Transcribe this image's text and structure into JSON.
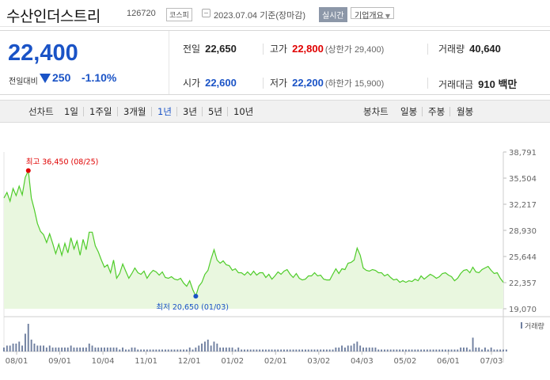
{
  "header": {
    "stock_name": "수산인더스트리",
    "stock_code": "126720",
    "market": "코스피",
    "date_text": "2023.07.04 기준(장마감)",
    "realtime_label": "실시간",
    "company_info_label": "기업개요"
  },
  "summary": {
    "price": "22,400",
    "change_label": "전일대비",
    "change_value": "250",
    "change_pct": "-1.10%",
    "prev_label": "전일",
    "prev_value": "22,650",
    "high_label": "고가",
    "high_value": "22,800",
    "upper_limit": "(상한가 29,400)",
    "volume_label": "거래량",
    "volume_value": "40,640",
    "open_label": "시가",
    "open_value": "22,600",
    "low_label": "저가",
    "low_value": "22,200",
    "lower_limit": "(하한가 15,900)",
    "amount_label": "거래대금",
    "amount_value": "910 백만"
  },
  "periods": {
    "line_label": "선차트",
    "line_options": [
      "1일",
      "1주일",
      "3개월",
      "1년",
      "3년",
      "5년",
      "10년"
    ],
    "active": "1년",
    "candle_label": "봉차트",
    "candle_options": [
      "일봉",
      "주봉",
      "월봉"
    ]
  },
  "chart_data": {
    "type": "area",
    "series": [
      {
        "values": [
          33000,
          33700,
          32600,
          34200,
          33300,
          34500,
          33400,
          35600,
          36450,
          33000,
          31500,
          29800,
          28800,
          28400,
          27400,
          28500,
          27300,
          26000,
          27200,
          25800,
          27300,
          26100,
          28000,
          26600,
          27600,
          25800,
          27800,
          26500,
          28700,
          28700,
          27000,
          26200,
          25200,
          24300,
          24600,
          23600,
          25200,
          22900,
          23500,
          24700,
          23800,
          22900,
          23500,
          24200,
          23600,
          23400,
          23800,
          22900,
          23500,
          23900,
          23700,
          23300,
          23700,
          23000,
          22900,
          23100,
          22800,
          22700,
          22900,
          22300,
          21900,
          22600,
          21500,
          20650,
          21900,
          22400,
          23400,
          23900,
          25300,
          26500,
          25200,
          24800,
          25100,
          24600,
          24500,
          23900,
          24100,
          23600,
          23600,
          23300,
          23700,
          23300,
          23800,
          23300,
          23600,
          23600,
          23000,
          23400,
          22800,
          23200,
          23700,
          23400,
          23800,
          24000,
          23400,
          23000,
          23500,
          22900,
          22700,
          22800,
          23200,
          23200,
          23600,
          23200,
          23300,
          22800,
          22700,
          22700,
          23400,
          24100,
          23500,
          24100,
          24000,
          24800,
          24900,
          25200,
          26700,
          25800,
          24200,
          23900,
          23800,
          24000,
          23900,
          23600,
          23600,
          23200,
          23400,
          23000,
          22700,
          22800,
          22400,
          22600,
          22400,
          22600,
          22500,
          22800,
          22600,
          23200,
          22800,
          23100,
          23400,
          23200,
          22900,
          23100,
          23500,
          23600,
          23300,
          23100,
          22600,
          22900,
          23500,
          23900,
          24000,
          23600,
          24300,
          23700,
          23600,
          24000,
          24200,
          24400,
          23900,
          23500,
          23600,
          22900,
          22400
        ]
      }
    ],
    "ylim": [
      19070,
      38791
    ],
    "y_ticks": [
      "38,791",
      "35,504",
      "32,217",
      "28,930",
      "25,644",
      "22,357",
      "19,070"
    ],
    "x_ticks": [
      "08/01",
      "09/01",
      "10/04",
      "11/01",
      "12/01",
      "01/02",
      "02/01",
      "03/02",
      "04/03",
      "05/02",
      "06/01",
      "07/03"
    ],
    "high_annotation": "최고 36,450 (08/25)",
    "low_annotation": "최저 20,650 (01/03)",
    "volume_label": "거래량",
    "volume": [
      2,
      3,
      3,
      4,
      4,
      5,
      3,
      9,
      14,
      6,
      4,
      3,
      3,
      3,
      2,
      3,
      2,
      2,
      2,
      2,
      2,
      2,
      3,
      2,
      2,
      2,
      2,
      2,
      4,
      3,
      2,
      2,
      2,
      2,
      2,
      2,
      2,
      2,
      1,
      2,
      1,
      1,
      2,
      2,
      1,
      1,
      1,
      1,
      1,
      1,
      1,
      1,
      1,
      1,
      1,
      1,
      1,
      1,
      1,
      1,
      1,
      2,
      1,
      2,
      3,
      4,
      5,
      6,
      3,
      5,
      4,
      2,
      2,
      2,
      2,
      2,
      1,
      2,
      1,
      1,
      1,
      1,
      1,
      1,
      1,
      1,
      1,
      1,
      1,
      1,
      1,
      1,
      1,
      1,
      1,
      1,
      1,
      1,
      1,
      1,
      1,
      1,
      1,
      1,
      1,
      1,
      1,
      1,
      1,
      2,
      2,
      3,
      2,
      3,
      3,
      4,
      5,
      3,
      2,
      2,
      2,
      2,
      2,
      1,
      1,
      1,
      1,
      1,
      1,
      1,
      1,
      1,
      1,
      1,
      1,
      1,
      1,
      1,
      1,
      1,
      1,
      1,
      1,
      1,
      1,
      1,
      1,
      1,
      1,
      1,
      2,
      2,
      2,
      1,
      7,
      2,
      2,
      1,
      2,
      1,
      2,
      1,
      1,
      1,
      1,
      1
    ]
  },
  "colors": {
    "line": "#4fcc2a",
    "fill": "#e9f7df",
    "up": "#e00000",
    "down": "#1a53c6"
  }
}
